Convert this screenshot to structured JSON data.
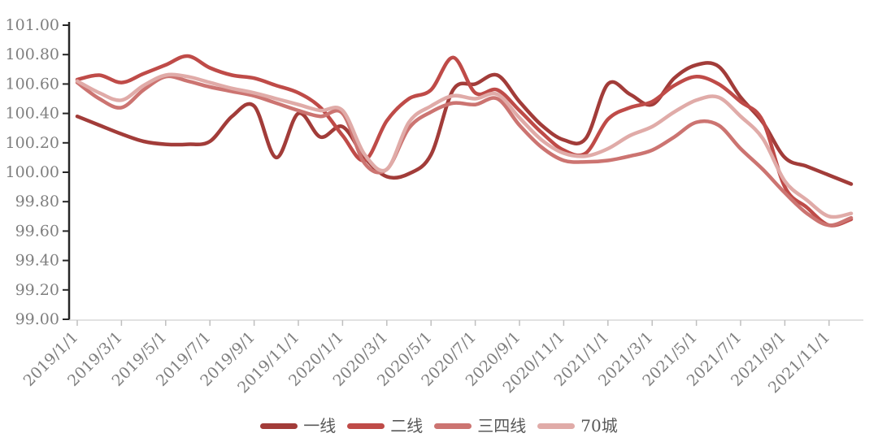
{
  "chart_data": {
    "type": "line",
    "title": "",
    "months": [
      "2019/1",
      "2019/2",
      "2019/3",
      "2019/4",
      "2019/5",
      "2019/6",
      "2019/7",
      "2019/8",
      "2019/9",
      "2019/10",
      "2019/11",
      "2019/12",
      "2020/1",
      "2020/2",
      "2020/3",
      "2020/4",
      "2020/5",
      "2020/6",
      "2020/7",
      "2020/8",
      "2020/9",
      "2020/10",
      "2020/11",
      "2020/12",
      "2021/1",
      "2021/2",
      "2021/3",
      "2021/4",
      "2021/5",
      "2021/6",
      "2021/7",
      "2021/8",
      "2021/9",
      "2021/10",
      "2021/11",
      "2021/12"
    ],
    "x_tick_labels": [
      "2019/1/1",
      "2019/3/1",
      "2019/5/1",
      "2019/7/1",
      "2019/9/1",
      "2019/11/1",
      "2020/1/1",
      "2020/3/1",
      "2020/5/1",
      "2020/7/1",
      "2020/9/1",
      "2020/11/1",
      "2021/1/1",
      "2021/3/1",
      "2021/5/1",
      "2021/7/1",
      "2021/9/1",
      "2021/11/1"
    ],
    "y_tick_labels": [
      "101.00",
      "100.80",
      "100.60",
      "100.40",
      "100.20",
      "100.00",
      "99.80",
      "99.60",
      "99.40",
      "99.20",
      "99.00"
    ],
    "ylim": [
      99.0,
      101.0
    ],
    "y_step": 0.2,
    "grid": false,
    "legend_position": "bottom",
    "series": [
      {
        "name": "一线",
        "color": "#A23C39",
        "values": [
          100.38,
          100.32,
          100.26,
          100.21,
          100.19,
          100.19,
          100.21,
          100.38,
          100.45,
          100.1,
          100.4,
          100.24,
          100.31,
          100.1,
          99.97,
          99.99,
          100.12,
          100.56,
          100.6,
          100.66,
          100.48,
          100.32,
          100.22,
          100.23,
          100.6,
          100.53,
          100.46,
          100.64,
          100.73,
          100.72,
          100.51,
          100.34,
          100.1,
          100.04,
          99.98,
          99.92
        ]
      },
      {
        "name": "二线",
        "color": "#BF4B48",
        "values": [
          100.63,
          100.66,
          100.61,
          100.67,
          100.73,
          100.79,
          100.71,
          100.66,
          100.64,
          100.59,
          100.54,
          100.44,
          100.25,
          100.08,
          100.35,
          100.5,
          100.56,
          100.78,
          100.54,
          100.56,
          100.42,
          100.27,
          100.15,
          100.13,
          100.36,
          100.44,
          100.48,
          100.59,
          100.65,
          100.6,
          100.48,
          100.35,
          99.9,
          99.76,
          99.64,
          99.68
        ]
      },
      {
        "name": "三四线",
        "color": "#CC7471",
        "values": [
          100.61,
          100.5,
          100.44,
          100.56,
          100.65,
          100.62,
          100.58,
          100.55,
          100.52,
          100.47,
          100.42,
          100.38,
          100.4,
          100.06,
          100.02,
          100.3,
          100.41,
          100.47,
          100.46,
          100.5,
          100.32,
          100.17,
          100.08,
          100.07,
          100.08,
          100.11,
          100.15,
          100.24,
          100.34,
          100.32,
          100.16,
          100.02,
          99.86,
          99.72,
          99.64,
          99.69
        ]
      },
      {
        "name": "70城",
        "color": "#E0ABA8",
        "values": [
          100.62,
          100.54,
          100.49,
          100.59,
          100.66,
          100.65,
          100.61,
          100.57,
          100.54,
          100.5,
          100.46,
          100.42,
          100.42,
          100.12,
          100.02,
          100.34,
          100.45,
          100.52,
          100.5,
          100.53,
          100.37,
          100.22,
          100.13,
          100.11,
          100.16,
          100.25,
          100.31,
          100.41,
          100.49,
          100.51,
          100.38,
          100.23,
          99.94,
          99.81,
          99.7,
          99.72
        ]
      }
    ],
    "axis_colors": {
      "y_axis": "#262626",
      "x_axis": "#d9d9d9",
      "x_tick": "#bfbfbf",
      "label_text": "#7f7f7f",
      "legend_text": "#595959"
    },
    "line_width": 4.5
  }
}
